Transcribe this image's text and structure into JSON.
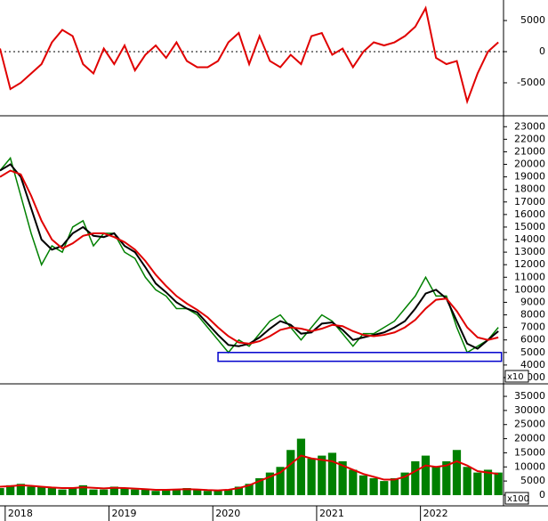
{
  "chart_data": [
    {
      "type": "line",
      "x": [
        2017.95,
        2018.05,
        2018.15,
        2018.25,
        2018.35,
        2018.45,
        2018.55,
        2018.65,
        2018.75,
        2018.85,
        2018.95,
        2019.05,
        2019.15,
        2019.25,
        2019.35,
        2019.45,
        2019.55,
        2019.65,
        2019.75,
        2019.85,
        2019.95,
        2020.05,
        2020.15,
        2020.25,
        2020.35,
        2020.45,
        2020.55,
        2020.65,
        2020.75,
        2020.85,
        2020.95,
        2021.05,
        2021.15,
        2021.25,
        2021.35,
        2021.45,
        2021.55,
        2021.65,
        2021.75,
        2021.85,
        2021.95,
        2022.05,
        2022.15,
        2022.25,
        2022.35,
        2022.45,
        2022.55,
        2022.65,
        2022.75
      ],
      "xlim": [
        2017.95,
        2022.8
      ],
      "ylim": [
        -10300,
        8300
      ],
      "yticks": [
        5000,
        0,
        -5000
      ],
      "reference_line": 0,
      "series": [
        {
          "color": "#e00000",
          "style": "line",
          "values": [
            500,
            -6000,
            -5000,
            -3500,
            -2000,
            1500,
            3500,
            2500,
            -2000,
            -3500,
            500,
            -2000,
            1000,
            -3000,
            -500,
            1000,
            -1000,
            1500,
            -1500,
            -2500,
            -2500,
            -1500,
            1500,
            3000,
            -2000,
            2500,
            -1500,
            -2500,
            -500,
            -2000,
            2500,
            3000,
            -500,
            500,
            -2500,
            0,
            1500,
            1000,
            1500,
            2500,
            4000,
            7000,
            -1000,
            -2000,
            -1500,
            -8000,
            -3500,
            0,
            1500
          ]
        }
      ]
    },
    {
      "type": "line",
      "x": [
        2017.95,
        2018.05,
        2018.15,
        2018.25,
        2018.35,
        2018.45,
        2018.55,
        2018.65,
        2018.75,
        2018.85,
        2018.95,
        2019.05,
        2019.15,
        2019.25,
        2019.35,
        2019.45,
        2019.55,
        2019.65,
        2019.75,
        2019.85,
        2019.95,
        2020.05,
        2020.15,
        2020.25,
        2020.35,
        2020.45,
        2020.55,
        2020.65,
        2020.75,
        2020.85,
        2020.95,
        2021.05,
        2021.15,
        2021.25,
        2021.35,
        2021.45,
        2021.55,
        2021.65,
        2021.75,
        2021.85,
        2021.95,
        2022.05,
        2022.15,
        2022.25,
        2022.35,
        2022.45,
        2022.55,
        2022.65,
        2022.75
      ],
      "xlim": [
        2017.95,
        2022.8
      ],
      "ylim": [
        2500,
        23800
      ],
      "yticks": [
        23000,
        22000,
        21000,
        20000,
        19000,
        18000,
        17000,
        16000,
        15000,
        14000,
        13000,
        12000,
        11000,
        10000,
        9000,
        8000,
        7000,
        6000,
        5000,
        4000,
        3000
      ],
      "unit_label": "x10",
      "support_box": {
        "x": [
          2020.05,
          2022.78
        ],
        "y": [
          4300,
          5000
        ],
        "color": "#0000cc"
      },
      "series": [
        {
          "color": "#008000",
          "style": "line",
          "values": [
            19500,
            20500,
            17500,
            14500,
            12000,
            13500,
            13000,
            15000,
            15500,
            13500,
            14500,
            14500,
            13000,
            12500,
            11000,
            10000,
            9500,
            8500,
            8500,
            8000,
            7000,
            6000,
            5000,
            6000,
            5500,
            6500,
            7500,
            8000,
            7000,
            6000,
            7000,
            8000,
            7500,
            6500,
            5500,
            6500,
            6500,
            7000,
            7500,
            8500,
            9500,
            11000,
            9500,
            9500,
            7000,
            5000,
            5500,
            6000,
            7000
          ]
        },
        {
          "color": "#000000",
          "style": "line",
          "values": [
            19500,
            20000,
            19000,
            16500,
            14000,
            13200,
            13500,
            14500,
            15000,
            14300,
            14200,
            14500,
            13500,
            13000,
            11800,
            10500,
            9800,
            9000,
            8500,
            8200,
            7300,
            6400,
            5600,
            5500,
            5700,
            6200,
            6900,
            7500,
            7200,
            6500,
            6600,
            7300,
            7400,
            6800,
            6000,
            6200,
            6400,
            6600,
            7000,
            7500,
            8500,
            9700,
            10000,
            9300,
            7500,
            5700,
            5300,
            6000,
            6700
          ]
        },
        {
          "color": "#e00000",
          "style": "line",
          "values": [
            19000,
            19500,
            19200,
            17500,
            15500,
            14000,
            13300,
            13700,
            14300,
            14500,
            14500,
            14200,
            13800,
            13200,
            12300,
            11200,
            10300,
            9500,
            8900,
            8400,
            7800,
            7000,
            6300,
            5800,
            5700,
            5900,
            6300,
            6800,
            7000,
            6900,
            6700,
            6900,
            7200,
            7100,
            6700,
            6400,
            6300,
            6400,
            6600,
            7000,
            7600,
            8500,
            9200,
            9300,
            8300,
            7000,
            6200,
            6000,
            6200
          ]
        }
      ]
    },
    {
      "type": "bar",
      "x": [
        2017.95,
        2018.05,
        2018.15,
        2018.25,
        2018.35,
        2018.45,
        2018.55,
        2018.65,
        2018.75,
        2018.85,
        2018.95,
        2019.05,
        2019.15,
        2019.25,
        2019.35,
        2019.45,
        2019.55,
        2019.65,
        2019.75,
        2019.85,
        2019.95,
        2020.05,
        2020.15,
        2020.25,
        2020.35,
        2020.45,
        2020.55,
        2020.65,
        2020.75,
        2020.85,
        2020.95,
        2021.05,
        2021.15,
        2021.25,
        2021.35,
        2021.45,
        2021.55,
        2021.65,
        2021.75,
        2021.85,
        2021.95,
        2022.05,
        2022.15,
        2022.25,
        2022.35,
        2022.45,
        2022.55,
        2022.65,
        2022.75
      ],
      "xlim": [
        2017.95,
        2022.8
      ],
      "xticks": [
        2018,
        2019,
        2020,
        2021,
        2022
      ],
      "ylim": [
        -3800,
        38800
      ],
      "yticks": [
        35000,
        30000,
        25000,
        20000,
        15000,
        10000,
        5000,
        0
      ],
      "unit_label": "x100",
      "series": [
        {
          "color": "#008000",
          "style": "bar",
          "values": [
            2500,
            3500,
            4000,
            3000,
            3000,
            2500,
            2000,
            2500,
            3500,
            2000,
            2000,
            3000,
            2500,
            2000,
            2000,
            1500,
            2000,
            2000,
            2500,
            2000,
            1500,
            1500,
            2000,
            3000,
            4000,
            6000,
            8000,
            10000,
            16000,
            20000,
            13000,
            14000,
            15000,
            12000,
            9000,
            7000,
            6000,
            5000,
            6000,
            8000,
            12000,
            14000,
            10000,
            12000,
            16000,
            10000,
            8000,
            9000,
            8000
          ]
        },
        {
          "color": "#e00000",
          "style": "line",
          "values": [
            3000,
            3200,
            3500,
            3300,
            3000,
            2700,
            2500,
            2500,
            2800,
            2600,
            2400,
            2600,
            2500,
            2300,
            2100,
            1900,
            1900,
            2000,
            2100,
            2000,
            1800,
            1700,
            1900,
            2500,
            3500,
            5000,
            6500,
            8000,
            11000,
            14000,
            13000,
            12500,
            12000,
            10500,
            9000,
            7500,
            6500,
            5500,
            5500,
            6500,
            8500,
            10500,
            10000,
            10500,
            12000,
            10500,
            8500,
            8000,
            7500
          ]
        }
      ]
    }
  ]
}
